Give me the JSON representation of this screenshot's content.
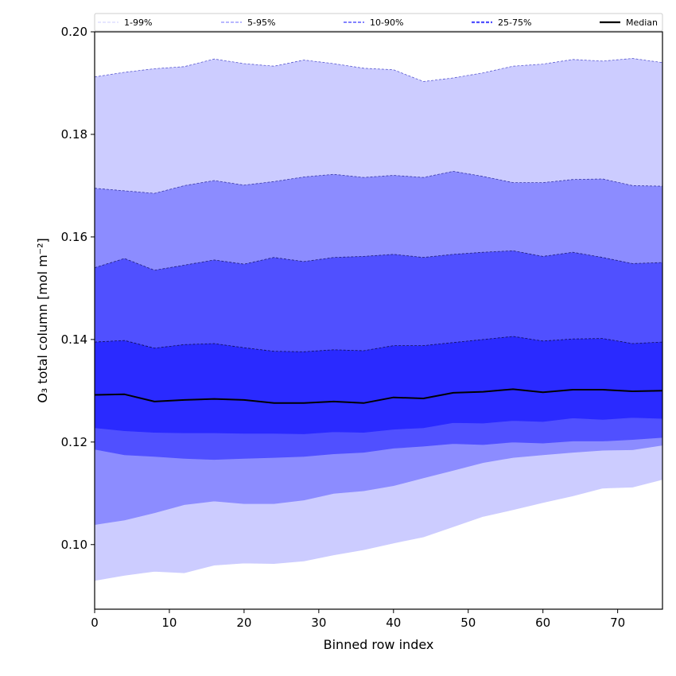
{
  "chart_data": {
    "type": "area",
    "title": "",
    "xlabel": "Binned row index",
    "ylabel": "O₃ total column [mol m⁻²]",
    "xlim": [
      0,
      76
    ],
    "ylim": [
      0.0874,
      0.2
    ],
    "xticks": [
      0,
      10,
      20,
      30,
      40,
      50,
      60,
      70
    ],
    "yticks": [
      0.1,
      0.12,
      0.14,
      0.16,
      0.18,
      0.2
    ],
    "ytick_labels": [
      "0.10",
      "0.12",
      "0.14",
      "0.16",
      "0.18",
      "0.20"
    ],
    "grid": false,
    "legend_placement": "top, above plot",
    "x": [
      0,
      4,
      8,
      12,
      16,
      20,
      24,
      28,
      32,
      36,
      40,
      44,
      48,
      52,
      56,
      60,
      64,
      68,
      72,
      76
    ],
    "bands": [
      {
        "name": "1-99%",
        "color": "#ccccff",
        "edge": "#5a5ad0",
        "lower": [
          0.093,
          0.094,
          0.0948,
          0.0945,
          0.096,
          0.0964,
          0.0963,
          0.0968,
          0.098,
          0.099,
          0.1003,
          0.1015,
          0.1035,
          0.1055,
          0.1068,
          0.1082,
          0.1095,
          0.111,
          0.1112,
          0.1127
        ],
        "upper": [
          0.1912,
          0.1921,
          0.1928,
          0.1932,
          0.1947,
          0.1938,
          0.1933,
          0.1945,
          0.1938,
          0.1929,
          0.1926,
          0.1903,
          0.191,
          0.192,
          0.1933,
          0.1937,
          0.1946,
          0.1943,
          0.1948,
          0.194
        ]
      },
      {
        "name": "5-95%",
        "color": "#8c8cff",
        "edge": "#3a3aa8",
        "lower": [
          0.1039,
          0.1048,
          0.1062,
          0.1078,
          0.1085,
          0.108,
          0.108,
          0.1087,
          0.11,
          0.1105,
          0.1115,
          0.113,
          0.1145,
          0.116,
          0.117,
          0.1175,
          0.118,
          0.1184,
          0.1185,
          0.1194
        ],
        "upper": [
          0.1695,
          0.169,
          0.1685,
          0.17,
          0.171,
          0.1701,
          0.1708,
          0.1717,
          0.1722,
          0.1716,
          0.172,
          0.1716,
          0.1728,
          0.1718,
          0.1706,
          0.1706,
          0.1712,
          0.1713,
          0.17,
          0.1699
        ]
      },
      {
        "name": "10-90%",
        "color": "#5050ff",
        "edge": "#20207a",
        "lower": [
          0.1186,
          0.1175,
          0.1172,
          0.1168,
          0.1166,
          0.1168,
          0.117,
          0.1172,
          0.1177,
          0.118,
          0.1188,
          0.1192,
          0.1197,
          0.1195,
          0.12,
          0.1198,
          0.1202,
          0.1202,
          0.1205,
          0.1209
        ],
        "upper": [
          0.154,
          0.1558,
          0.1535,
          0.1545,
          0.1555,
          0.1547,
          0.156,
          0.1552,
          0.156,
          0.1562,
          0.1566,
          0.156,
          0.1566,
          0.157,
          0.1573,
          0.1562,
          0.157,
          0.156,
          0.1548,
          0.155
        ]
      },
      {
        "name": "25-75%",
        "color": "#2a2aff",
        "edge": "#10105a",
        "lower": [
          0.1228,
          0.1222,
          0.1219,
          0.1218,
          0.1218,
          0.1217,
          0.1217,
          0.1216,
          0.122,
          0.1219,
          0.1225,
          0.1228,
          0.1238,
          0.1237,
          0.1242,
          0.124,
          0.1247,
          0.1244,
          0.1248,
          0.1246
        ],
        "upper": [
          0.1395,
          0.1398,
          0.1383,
          0.139,
          0.1392,
          0.1384,
          0.1377,
          0.1376,
          0.138,
          0.1378,
          0.1388,
          0.1388,
          0.1394,
          0.14,
          0.1406,
          0.1397,
          0.1401,
          0.1402,
          0.1392,
          0.1395
        ]
      }
    ],
    "series": [
      {
        "name": "Median",
        "color": "#000000",
        "values": [
          0.1292,
          0.1293,
          0.1279,
          0.1282,
          0.1284,
          0.1282,
          0.1276,
          0.1276,
          0.1279,
          0.1276,
          0.1287,
          0.1285,
          0.1296,
          0.1298,
          0.1303,
          0.1297,
          0.1302,
          0.1302,
          0.1299,
          0.13
        ]
      }
    ],
    "legend": [
      {
        "label": "1-99%",
        "color": "#ccccff"
      },
      {
        "label": "5-95%",
        "color": "#a0a0ff"
      },
      {
        "label": "10-90%",
        "color": "#7070ff"
      },
      {
        "label": "25-75%",
        "color": "#5050ff"
      },
      {
        "label": "Median",
        "color": "#000000"
      }
    ]
  }
}
